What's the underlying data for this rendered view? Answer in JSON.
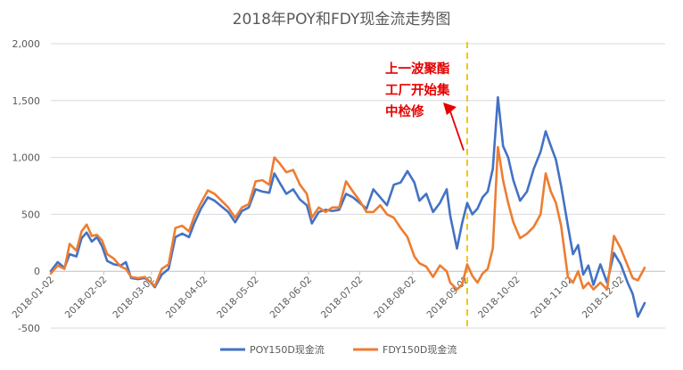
{
  "chart_data": {
    "type": "line",
    "title": "2018年POY和FDY现金流走势图",
    "xlabel": "",
    "ylabel": "",
    "ylim": [
      -500,
      2000
    ],
    "y_ticks": [
      "2,000",
      "1,500",
      "1,000",
      "500",
      "0",
      "-500"
    ],
    "y_tick_values": [
      2000,
      1500,
      1000,
      500,
      0,
      -500
    ],
    "x_tick_labels": [
      "2018-01-02",
      "2018-02-02",
      "2018-03-02",
      "2018-04-02",
      "2018-05-02",
      "2018-06-02",
      "2018-07-02",
      "2018-08-02",
      "2018-09-02",
      "2018-10-02",
      "2018-11-02",
      "2018-12-02"
    ],
    "x_tick_values": [
      "2018-01-02",
      "2018-02-02",
      "2018-03-02",
      "2018-04-02",
      "2018-05-02",
      "2018-06-02",
      "2018-07-02",
      "2018-08-02",
      "2018-09-02",
      "2018-10-02",
      "2018-11-02",
      "2018-12-02"
    ],
    "x_range": [
      "2018-01-02",
      "2018-12-28"
    ],
    "grid": "horizontal",
    "legend_position": "bottom",
    "vertical_marker": {
      "x": "2018-09-03",
      "color": "#f2c811",
      "style": "dashed"
    },
    "annotation": {
      "lines": [
        "上一波聚酯",
        "工厂开始集",
        "中检修"
      ],
      "color": "#e60000",
      "arrow_target": {
        "x": "2018-09-03",
        "y": 1000
      }
    },
    "series": [
      {
        "name": "POY150D现金流",
        "color": "#4472c4",
        "points": [
          [
            "2018-01-02",
            0
          ],
          [
            "2018-01-06",
            80
          ],
          [
            "2018-01-10",
            30
          ],
          [
            "2018-01-13",
            150
          ],
          [
            "2018-01-17",
            130
          ],
          [
            "2018-01-20",
            290
          ],
          [
            "2018-01-23",
            340
          ],
          [
            "2018-01-26",
            260
          ],
          [
            "2018-01-29",
            300
          ],
          [
            "2018-02-01",
            220
          ],
          [
            "2018-02-04",
            90
          ],
          [
            "2018-02-08",
            60
          ],
          [
            "2018-02-12",
            50
          ],
          [
            "2018-02-15",
            80
          ],
          [
            "2018-02-18",
            -60
          ],
          [
            "2018-02-22",
            -70
          ],
          [
            "2018-02-26",
            -60
          ],
          [
            "2018-03-01",
            -90
          ],
          [
            "2018-03-04",
            -140
          ],
          [
            "2018-03-08",
            -30
          ],
          [
            "2018-03-12",
            20
          ],
          [
            "2018-03-16",
            300
          ],
          [
            "2018-03-20",
            330
          ],
          [
            "2018-03-24",
            300
          ],
          [
            "2018-03-27",
            420
          ],
          [
            "2018-03-31",
            550
          ],
          [
            "2018-04-04",
            650
          ],
          [
            "2018-04-08",
            620
          ],
          [
            "2018-04-12",
            570
          ],
          [
            "2018-04-16",
            520
          ],
          [
            "2018-04-20",
            430
          ],
          [
            "2018-04-24",
            530
          ],
          [
            "2018-04-28",
            560
          ],
          [
            "2018-05-02",
            720
          ],
          [
            "2018-05-06",
            700
          ],
          [
            "2018-05-10",
            690
          ],
          [
            "2018-05-13",
            860
          ],
          [
            "2018-05-16",
            780
          ],
          [
            "2018-05-20",
            680
          ],
          [
            "2018-05-24",
            720
          ],
          [
            "2018-05-28",
            630
          ],
          [
            "2018-06-01",
            580
          ],
          [
            "2018-06-04",
            420
          ],
          [
            "2018-06-08",
            520
          ],
          [
            "2018-06-12",
            540
          ],
          [
            "2018-06-16",
            530
          ],
          [
            "2018-06-20",
            540
          ],
          [
            "2018-06-24",
            680
          ],
          [
            "2018-06-28",
            650
          ],
          [
            "2018-07-02",
            600
          ],
          [
            "2018-07-06",
            550
          ],
          [
            "2018-07-10",
            720
          ],
          [
            "2018-07-14",
            650
          ],
          [
            "2018-07-18",
            580
          ],
          [
            "2018-07-22",
            760
          ],
          [
            "2018-07-26",
            780
          ],
          [
            "2018-07-30",
            880
          ],
          [
            "2018-08-03",
            780
          ],
          [
            "2018-08-06",
            620
          ],
          [
            "2018-08-10",
            680
          ],
          [
            "2018-08-14",
            520
          ],
          [
            "2018-08-18",
            600
          ],
          [
            "2018-08-22",
            720
          ],
          [
            "2018-08-24",
            490
          ],
          [
            "2018-08-28",
            200
          ],
          [
            "2018-08-31",
            420
          ],
          [
            "2018-09-03",
            600
          ],
          [
            "2018-09-06",
            500
          ],
          [
            "2018-09-09",
            550
          ],
          [
            "2018-09-12",
            650
          ],
          [
            "2018-09-15",
            700
          ],
          [
            "2018-09-18",
            900
          ],
          [
            "2018-09-21",
            1530
          ],
          [
            "2018-09-24",
            1100
          ],
          [
            "2018-09-27",
            1000
          ],
          [
            "2018-09-30",
            800
          ],
          [
            "2018-10-04",
            620
          ],
          [
            "2018-10-08",
            700
          ],
          [
            "2018-10-12",
            900
          ],
          [
            "2018-10-16",
            1050
          ],
          [
            "2018-10-19",
            1230
          ],
          [
            "2018-10-22",
            1100
          ],
          [
            "2018-10-25",
            980
          ],
          [
            "2018-10-28",
            750
          ],
          [
            "2018-11-01",
            400
          ],
          [
            "2018-11-04",
            150
          ],
          [
            "2018-11-07",
            230
          ],
          [
            "2018-11-10",
            -30
          ],
          [
            "2018-11-13",
            50
          ],
          [
            "2018-11-16",
            -120
          ],
          [
            "2018-11-20",
            60
          ],
          [
            "2018-11-24",
            -100
          ],
          [
            "2018-11-28",
            160
          ],
          [
            "2018-12-02",
            60
          ],
          [
            "2018-12-06",
            -100
          ],
          [
            "2018-12-09",
            -200
          ],
          [
            "2018-12-12",
            -400
          ],
          [
            "2018-12-16",
            -280
          ]
        ]
      },
      {
        "name": "FDY150D现金流",
        "color": "#ed7d31",
        "points": [
          [
            "2018-01-02",
            -20
          ],
          [
            "2018-01-06",
            50
          ],
          [
            "2018-01-10",
            20
          ],
          [
            "2018-01-13",
            240
          ],
          [
            "2018-01-17",
            180
          ],
          [
            "2018-01-20",
            350
          ],
          [
            "2018-01-23",
            410
          ],
          [
            "2018-01-26",
            310
          ],
          [
            "2018-01-29",
            320
          ],
          [
            "2018-02-01",
            270
          ],
          [
            "2018-02-04",
            150
          ],
          [
            "2018-02-08",
            110
          ],
          [
            "2018-02-12",
            40
          ],
          [
            "2018-02-15",
            20
          ],
          [
            "2018-02-18",
            -50
          ],
          [
            "2018-02-22",
            -60
          ],
          [
            "2018-02-26",
            -50
          ],
          [
            "2018-03-01",
            -90
          ],
          [
            "2018-03-04",
            -130
          ],
          [
            "2018-03-08",
            20
          ],
          [
            "2018-03-12",
            60
          ],
          [
            "2018-03-16",
            380
          ],
          [
            "2018-03-20",
            400
          ],
          [
            "2018-03-24",
            350
          ],
          [
            "2018-03-27",
            480
          ],
          [
            "2018-03-31",
            600
          ],
          [
            "2018-04-04",
            710
          ],
          [
            "2018-04-08",
            680
          ],
          [
            "2018-04-12",
            620
          ],
          [
            "2018-04-16",
            560
          ],
          [
            "2018-04-20",
            470
          ],
          [
            "2018-04-24",
            560
          ],
          [
            "2018-04-28",
            590
          ],
          [
            "2018-05-02",
            790
          ],
          [
            "2018-05-06",
            800
          ],
          [
            "2018-05-10",
            760
          ],
          [
            "2018-05-13",
            1000
          ],
          [
            "2018-05-16",
            950
          ],
          [
            "2018-05-20",
            870
          ],
          [
            "2018-05-24",
            890
          ],
          [
            "2018-05-28",
            760
          ],
          [
            "2018-06-01",
            680
          ],
          [
            "2018-06-04",
            470
          ],
          [
            "2018-06-08",
            560
          ],
          [
            "2018-06-12",
            520
          ],
          [
            "2018-06-16",
            560
          ],
          [
            "2018-06-20",
            560
          ],
          [
            "2018-06-24",
            790
          ],
          [
            "2018-06-28",
            700
          ],
          [
            "2018-07-02",
            620
          ],
          [
            "2018-07-06",
            520
          ],
          [
            "2018-07-10",
            520
          ],
          [
            "2018-07-14",
            580
          ],
          [
            "2018-07-18",
            500
          ],
          [
            "2018-07-22",
            470
          ],
          [
            "2018-07-26",
            380
          ],
          [
            "2018-07-30",
            300
          ],
          [
            "2018-08-03",
            130
          ],
          [
            "2018-08-06",
            70
          ],
          [
            "2018-08-10",
            40
          ],
          [
            "2018-08-14",
            -50
          ],
          [
            "2018-08-18",
            50
          ],
          [
            "2018-08-22",
            0
          ],
          [
            "2018-08-24",
            -100
          ],
          [
            "2018-08-28",
            -160
          ],
          [
            "2018-08-31",
            -120
          ],
          [
            "2018-09-03",
            60
          ],
          [
            "2018-09-06",
            -40
          ],
          [
            "2018-09-09",
            -100
          ],
          [
            "2018-09-12",
            -20
          ],
          [
            "2018-09-15",
            20
          ],
          [
            "2018-09-18",
            200
          ],
          [
            "2018-09-21",
            1090
          ],
          [
            "2018-09-24",
            800
          ],
          [
            "2018-09-27",
            600
          ],
          [
            "2018-09-30",
            430
          ],
          [
            "2018-10-04",
            290
          ],
          [
            "2018-10-08",
            330
          ],
          [
            "2018-10-12",
            390
          ],
          [
            "2018-10-16",
            500
          ],
          [
            "2018-10-19",
            860
          ],
          [
            "2018-10-22",
            700
          ],
          [
            "2018-10-25",
            600
          ],
          [
            "2018-10-28",
            400
          ],
          [
            "2018-11-01",
            -50
          ],
          [
            "2018-11-04",
            -100
          ],
          [
            "2018-11-07",
            0
          ],
          [
            "2018-11-10",
            -150
          ],
          [
            "2018-11-13",
            -100
          ],
          [
            "2018-11-16",
            -160
          ],
          [
            "2018-11-20",
            -100
          ],
          [
            "2018-11-24",
            -160
          ],
          [
            "2018-11-28",
            310
          ],
          [
            "2018-12-02",
            200
          ],
          [
            "2018-12-06",
            50
          ],
          [
            "2018-12-09",
            -60
          ],
          [
            "2018-12-12",
            -80
          ],
          [
            "2018-12-16",
            30
          ]
        ]
      }
    ]
  }
}
